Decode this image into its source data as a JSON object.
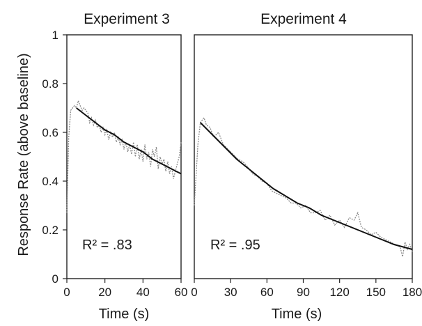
{
  "chart_data": [
    {
      "type": "line",
      "title": "Experiment 3",
      "xlabel": "Time (s)",
      "ylabel": "Response Rate (above baseline)",
      "xlim": [
        0,
        60
      ],
      "ylim": [
        0,
        1
      ],
      "xticks": [
        0,
        20,
        40,
        60
      ],
      "yticks": [
        0,
        0.2,
        0.4,
        0.6,
        0.8,
        1
      ],
      "ytick_labels": [
        "0",
        "0.2",
        "0.4",
        "0.6",
        "0.8",
        "1"
      ],
      "annotation": "R² = .83",
      "series": [
        {
          "style": "dotted-gray",
          "x": [
            0,
            1,
            2,
            3,
            4,
            5,
            6,
            7,
            8,
            9,
            10,
            11,
            12,
            13,
            14,
            15,
            16,
            17,
            18,
            19,
            20,
            21,
            22,
            23,
            24,
            25,
            26,
            27,
            28,
            29,
            30,
            31,
            32,
            33,
            34,
            35,
            36,
            37,
            38,
            39,
            40,
            41,
            42,
            43,
            44,
            45,
            46,
            47,
            48,
            49,
            50,
            51,
            52,
            53,
            54,
            55,
            56,
            57,
            58,
            59,
            60
          ],
          "y": [
            0.27,
            0.58,
            0.69,
            0.7,
            0.71,
            0.7,
            0.73,
            0.71,
            0.69,
            0.7,
            0.69,
            0.68,
            0.64,
            0.66,
            0.63,
            0.65,
            0.62,
            0.63,
            0.6,
            0.62,
            0.59,
            0.61,
            0.57,
            0.6,
            0.58,
            0.6,
            0.56,
            0.58,
            0.55,
            0.57,
            0.53,
            0.56,
            0.52,
            0.55,
            0.51,
            0.56,
            0.5,
            0.55,
            0.49,
            0.53,
            0.48,
            0.55,
            0.49,
            0.52,
            0.46,
            0.53,
            0.5,
            0.54,
            0.45,
            0.5,
            0.47,
            0.49,
            0.44,
            0.48,
            0.43,
            0.46,
            0.41,
            0.44,
            0.47,
            0.5,
            0.56
          ]
        },
        {
          "style": "solid-fit",
          "x": [
            5,
            10,
            15,
            20,
            25,
            30,
            35,
            40,
            45,
            50,
            55,
            60
          ],
          "y": [
            0.7,
            0.67,
            0.64,
            0.61,
            0.59,
            0.56,
            0.54,
            0.52,
            0.49,
            0.47,
            0.45,
            0.43
          ]
        }
      ]
    },
    {
      "type": "line",
      "title": "Experiment 4",
      "xlabel": "Time (s)",
      "ylabel": "",
      "xlim": [
        0,
        180
      ],
      "ylim": [
        0,
        1
      ],
      "xticks": [
        0,
        30,
        60,
        90,
        120,
        150,
        180
      ],
      "yticks": [],
      "annotation": "R² = .95",
      "series": [
        {
          "style": "dotted-gray",
          "x": [
            0,
            3,
            5,
            8,
            10,
            13,
            16,
            20,
            24,
            28,
            32,
            36,
            40,
            44,
            48,
            52,
            56,
            60,
            64,
            68,
            72,
            76,
            80,
            84,
            88,
            92,
            96,
            100,
            104,
            108,
            112,
            116,
            120,
            124,
            128,
            132,
            135,
            138,
            142,
            146,
            150,
            154,
            158,
            162,
            166,
            170,
            172,
            174,
            176,
            178,
            180
          ],
          "y": [
            0.3,
            0.55,
            0.64,
            0.66,
            0.63,
            0.62,
            0.58,
            0.6,
            0.55,
            0.53,
            0.51,
            0.49,
            0.48,
            0.46,
            0.43,
            0.42,
            0.4,
            0.39,
            0.36,
            0.35,
            0.34,
            0.33,
            0.31,
            0.31,
            0.29,
            0.3,
            0.27,
            0.27,
            0.28,
            0.24,
            0.26,
            0.22,
            0.24,
            0.21,
            0.25,
            0.24,
            0.27,
            0.21,
            0.2,
            0.18,
            0.19,
            0.17,
            0.16,
            0.15,
            0.14,
            0.13,
            0.09,
            0.15,
            0.12,
            0.14,
            0.11
          ]
        },
        {
          "style": "solid-fit",
          "x": [
            5,
            15,
            25,
            35,
            45,
            55,
            65,
            75,
            85,
            95,
            105,
            115,
            125,
            135,
            145,
            155,
            165,
            180
          ],
          "y": [
            0.64,
            0.59,
            0.54,
            0.49,
            0.45,
            0.41,
            0.37,
            0.34,
            0.31,
            0.29,
            0.26,
            0.24,
            0.22,
            0.2,
            0.18,
            0.16,
            0.14,
            0.12
          ]
        }
      ]
    }
  ]
}
